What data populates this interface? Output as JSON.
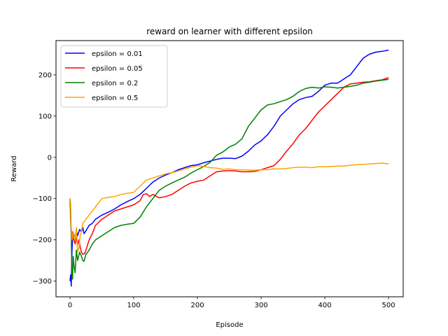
{
  "chart_data": {
    "type": "line",
    "title": "reward on learner with different epsilon",
    "xlabel": "Episode",
    "ylabel": "Reward",
    "xlim": [
      -22,
      523
    ],
    "ylim": [
      -338,
      283
    ],
    "xticks": [
      0,
      100,
      200,
      300,
      400,
      500
    ],
    "yticks": [
      -300,
      -200,
      -100,
      0,
      100,
      200
    ],
    "grid": false,
    "legend": "top-left",
    "series": [
      {
        "name": "epsilon = 0.01",
        "color": "#0000ff",
        "points": [
          [
            0,
            -300
          ],
          [
            1,
            -285
          ],
          [
            2,
            -312
          ],
          [
            3,
            -230
          ],
          [
            4,
            -195
          ],
          [
            6,
            -185
          ],
          [
            8,
            -198
          ],
          [
            10,
            -178
          ],
          [
            12,
            -190
          ],
          [
            15,
            -175
          ],
          [
            18,
            -180
          ],
          [
            20,
            -170
          ],
          [
            22,
            -185
          ],
          [
            25,
            -178
          ],
          [
            30,
            -165
          ],
          [
            35,
            -160
          ],
          [
            40,
            -150
          ],
          [
            50,
            -140
          ],
          [
            60,
            -133
          ],
          [
            70,
            -125
          ],
          [
            80,
            -115
          ],
          [
            90,
            -107
          ],
          [
            100,
            -100
          ],
          [
            110,
            -90
          ],
          [
            120,
            -75
          ],
          [
            130,
            -60
          ],
          [
            140,
            -50
          ],
          [
            150,
            -43
          ],
          [
            160,
            -37
          ],
          [
            170,
            -30
          ],
          [
            180,
            -25
          ],
          [
            190,
            -20
          ],
          [
            200,
            -18
          ],
          [
            210,
            -13
          ],
          [
            220,
            -9
          ],
          [
            230,
            -5
          ],
          [
            240,
            -2
          ],
          [
            250,
            -2
          ],
          [
            260,
            -3
          ],
          [
            270,
            3
          ],
          [
            280,
            15
          ],
          [
            290,
            30
          ],
          [
            300,
            40
          ],
          [
            310,
            55
          ],
          [
            320,
            75
          ],
          [
            330,
            100
          ],
          [
            340,
            115
          ],
          [
            350,
            130
          ],
          [
            360,
            140
          ],
          [
            370,
            145
          ],
          [
            380,
            148
          ],
          [
            390,
            160
          ],
          [
            400,
            175
          ],
          [
            410,
            180
          ],
          [
            420,
            180
          ],
          [
            430,
            190
          ],
          [
            440,
            200
          ],
          [
            450,
            220
          ],
          [
            460,
            240
          ],
          [
            470,
            250
          ],
          [
            480,
            255
          ],
          [
            490,
            257
          ],
          [
            500,
            260
          ]
        ]
      },
      {
        "name": "epsilon = 0.05",
        "color": "#ff0000",
        "points": [
          [
            0,
            -100
          ],
          [
            1,
            -150
          ],
          [
            2,
            -185
          ],
          [
            3,
            -180
          ],
          [
            5,
            -195
          ],
          [
            8,
            -210
          ],
          [
            10,
            -195
          ],
          [
            12,
            -212
          ],
          [
            14,
            -200
          ],
          [
            16,
            -218
          ],
          [
            18,
            -230
          ],
          [
            20,
            -235
          ],
          [
            23,
            -233
          ],
          [
            26,
            -220
          ],
          [
            30,
            -200
          ],
          [
            35,
            -185
          ],
          [
            40,
            -165
          ],
          [
            50,
            -150
          ],
          [
            60,
            -140
          ],
          [
            70,
            -130
          ],
          [
            80,
            -125
          ],
          [
            90,
            -120
          ],
          [
            100,
            -115
          ],
          [
            110,
            -105
          ],
          [
            115,
            -90
          ],
          [
            120,
            -88
          ],
          [
            125,
            -95
          ],
          [
            130,
            -90
          ],
          [
            140,
            -98
          ],
          [
            150,
            -95
          ],
          [
            160,
            -90
          ],
          [
            170,
            -80
          ],
          [
            180,
            -70
          ],
          [
            190,
            -62
          ],
          [
            200,
            -58
          ],
          [
            210,
            -55
          ],
          [
            220,
            -45
          ],
          [
            230,
            -35
          ],
          [
            240,
            -33
          ],
          [
            250,
            -32
          ],
          [
            260,
            -33
          ],
          [
            270,
            -35
          ],
          [
            280,
            -35
          ],
          [
            290,
            -34
          ],
          [
            300,
            -30
          ],
          [
            310,
            -25
          ],
          [
            320,
            -20
          ],
          [
            330,
            -5
          ],
          [
            340,
            15
          ],
          [
            350,
            33
          ],
          [
            360,
            55
          ],
          [
            370,
            70
          ],
          [
            380,
            90
          ],
          [
            390,
            110
          ],
          [
            400,
            125
          ],
          [
            410,
            140
          ],
          [
            420,
            155
          ],
          [
            430,
            170
          ],
          [
            440,
            178
          ],
          [
            450,
            180
          ],
          [
            460,
            182
          ],
          [
            470,
            183
          ],
          [
            480,
            186
          ],
          [
            490,
            188
          ],
          [
            500,
            193
          ]
        ]
      },
      {
        "name": "epsilon = 0.2",
        "color": "#008000",
        "points": [
          [
            0,
            -100
          ],
          [
            1,
            -130
          ],
          [
            2,
            -190
          ],
          [
            3,
            -290
          ],
          [
            4,
            -295
          ],
          [
            5,
            -240
          ],
          [
            6,
            -260
          ],
          [
            8,
            -280
          ],
          [
            10,
            -225
          ],
          [
            12,
            -250
          ],
          [
            15,
            -230
          ],
          [
            18,
            -240
          ],
          [
            20,
            -250
          ],
          [
            22,
            -252
          ],
          [
            25,
            -235
          ],
          [
            30,
            -225
          ],
          [
            35,
            -210
          ],
          [
            40,
            -200
          ],
          [
            50,
            -190
          ],
          [
            60,
            -180
          ],
          [
            70,
            -170
          ],
          [
            80,
            -165
          ],
          [
            90,
            -162
          ],
          [
            100,
            -160
          ],
          [
            110,
            -145
          ],
          [
            120,
            -120
          ],
          [
            130,
            -100
          ],
          [
            140,
            -80
          ],
          [
            150,
            -70
          ],
          [
            160,
            -62
          ],
          [
            170,
            -55
          ],
          [
            180,
            -48
          ],
          [
            190,
            -38
          ],
          [
            200,
            -30
          ],
          [
            210,
            -22
          ],
          [
            220,
            -12
          ],
          [
            230,
            5
          ],
          [
            240,
            13
          ],
          [
            250,
            25
          ],
          [
            260,
            32
          ],
          [
            270,
            45
          ],
          [
            280,
            75
          ],
          [
            290,
            95
          ],
          [
            300,
            115
          ],
          [
            310,
            127
          ],
          [
            320,
            130
          ],
          [
            330,
            135
          ],
          [
            340,
            140
          ],
          [
            350,
            148
          ],
          [
            360,
            160
          ],
          [
            370,
            167
          ],
          [
            380,
            170
          ],
          [
            390,
            168
          ],
          [
            400,
            171
          ],
          [
            410,
            170
          ],
          [
            420,
            168
          ],
          [
            430,
            170
          ],
          [
            440,
            172
          ],
          [
            450,
            175
          ],
          [
            460,
            180
          ],
          [
            470,
            182
          ],
          [
            480,
            185
          ],
          [
            490,
            187
          ],
          [
            500,
            189
          ]
        ]
      },
      {
        "name": "epsilon = 0.5",
        "color": "#ffa500",
        "points": [
          [
            0,
            -100
          ],
          [
            1,
            -110
          ],
          [
            2,
            -170
          ],
          [
            3,
            -200
          ],
          [
            5,
            -180
          ],
          [
            8,
            -200
          ],
          [
            10,
            -170
          ],
          [
            12,
            -230
          ],
          [
            14,
            -220
          ],
          [
            16,
            -190
          ],
          [
            18,
            -180
          ],
          [
            20,
            -160
          ],
          [
            25,
            -150
          ],
          [
            30,
            -140
          ],
          [
            40,
            -120
          ],
          [
            50,
            -100
          ],
          [
            60,
            -97
          ],
          [
            70,
            -95
          ],
          [
            80,
            -90
          ],
          [
            90,
            -87
          ],
          [
            100,
            -85
          ],
          [
            110,
            -70
          ],
          [
            120,
            -55
          ],
          [
            130,
            -50
          ],
          [
            140,
            -45
          ],
          [
            150,
            -40
          ],
          [
            160,
            -37
          ],
          [
            170,
            -33
          ],
          [
            180,
            -28
          ],
          [
            190,
            -24
          ],
          [
            200,
            -20
          ],
          [
            210,
            -22
          ],
          [
            220,
            -25
          ],
          [
            230,
            -26
          ],
          [
            240,
            -29
          ],
          [
            250,
            -28
          ],
          [
            260,
            -30
          ],
          [
            270,
            -30
          ],
          [
            280,
            -31
          ],
          [
            290,
            -31
          ],
          [
            300,
            -30
          ],
          [
            310,
            -30
          ],
          [
            320,
            -28
          ],
          [
            330,
            -28
          ],
          [
            340,
            -27
          ],
          [
            350,
            -25
          ],
          [
            360,
            -24
          ],
          [
            370,
            -24
          ],
          [
            380,
            -25
          ],
          [
            390,
            -23
          ],
          [
            400,
            -23
          ],
          [
            410,
            -22
          ],
          [
            420,
            -21
          ],
          [
            430,
            -21
          ],
          [
            440,
            -19
          ],
          [
            450,
            -18
          ],
          [
            460,
            -17
          ],
          [
            470,
            -16
          ],
          [
            480,
            -15
          ],
          [
            490,
            -14
          ],
          [
            500,
            -16
          ]
        ]
      }
    ]
  }
}
